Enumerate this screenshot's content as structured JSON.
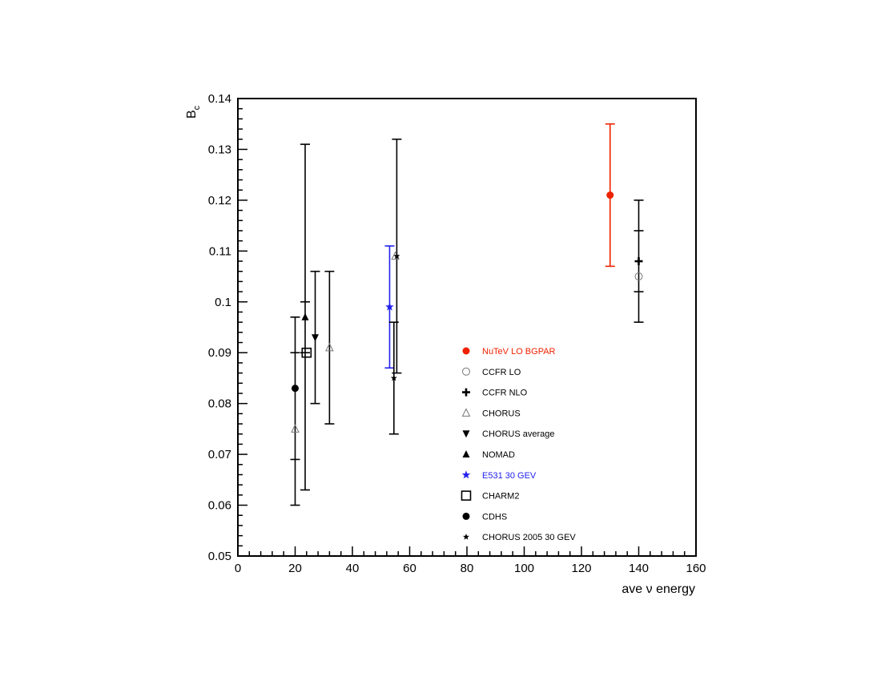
{
  "chart_data": {
    "type": "scatter",
    "title": "",
    "xlabel": "ave ν energy",
    "ylabel": "B",
    "ylabel_sub": "c",
    "xlim": [
      0,
      160
    ],
    "ylim": [
      0.05,
      0.14
    ],
    "x_ticks": [
      0,
      20,
      40,
      60,
      80,
      100,
      120,
      140,
      160
    ],
    "x_tick_labels": [
      "0",
      "20",
      "40",
      "60",
      "80",
      "100",
      "120",
      "140",
      "160"
    ],
    "y_ticks": [
      0.05,
      0.06,
      0.07,
      0.08,
      0.09,
      0.1,
      0.11,
      0.12,
      0.13,
      0.14
    ],
    "y_tick_labels": [
      "0.05",
      "0.06",
      "0.07",
      "0.08",
      "0.09",
      "0.1",
      "0.11",
      "0.12",
      "0.13",
      "0.14"
    ],
    "grid": false,
    "legend_position": "center-right",
    "series": [
      {
        "name": "NuTeV LO BGPAR",
        "marker": "circle-filled",
        "color": "#ee2200",
        "points": [
          {
            "x": 130,
            "y": 0.121,
            "ylow": 0.107,
            "yhigh": 0.135
          }
        ]
      },
      {
        "name": "CCFR LO",
        "marker": "circle-open",
        "color": "#777777",
        "points": [
          {
            "x": 140,
            "y": 0.105
          }
        ]
      },
      {
        "name": "CCFR NLO",
        "marker": "cross",
        "color": "#000000",
        "points": [
          {
            "x": 140,
            "y": 0.108,
            "ylow": 0.096,
            "yhigh": 0.12,
            "ylow_inner": 0.102,
            "yhigh_inner": 0.114
          }
        ]
      },
      {
        "name": "CHORUS",
        "marker": "triangle-open",
        "color": "#777777",
        "points": [
          {
            "x": 20,
            "y": 0.075
          },
          {
            "x": 32,
            "y": 0.091,
            "ylow": 0.076,
            "yhigh": 0.106
          },
          {
            "x": 55,
            "y": 0.109
          }
        ]
      },
      {
        "name": "CHORUS average",
        "marker": "triangle-down-filled",
        "color": "#000000",
        "points": [
          {
            "x": 27,
            "y": 0.093,
            "ylow": 0.08,
            "yhigh": 0.106
          }
        ]
      },
      {
        "name": "NOMAD",
        "marker": "triangle-filled",
        "color": "#000000",
        "points": [
          {
            "x": 23.5,
            "y": 0.097,
            "ylow": 0.063,
            "yhigh": 0.131,
            "ylow_inner": 0.09,
            "yhigh_inner": 0.1
          }
        ]
      },
      {
        "name": "E531 30 GEV",
        "marker": "star",
        "color": "#2222ee",
        "points": [
          {
            "x": 53,
            "y": 0.099,
            "ylow": 0.087,
            "yhigh": 0.111
          }
        ]
      },
      {
        "name": "CHARM2",
        "marker": "square-open",
        "color": "#000000",
        "points": [
          {
            "x": 24,
            "y": 0.09
          }
        ]
      },
      {
        "name": "CDHS",
        "marker": "circle-filled",
        "color": "#000000",
        "points": [
          {
            "x": 20,
            "y": 0.083,
            "ylow": 0.06,
            "yhigh": 0.097,
            "ylow_inner": 0.069,
            "yhigh_inner": 0.09
          }
        ]
      },
      {
        "name": "CHORUS 2005 30 GEV",
        "marker": "star-small",
        "color": "#000000",
        "points": [
          {
            "x": 54.5,
            "y": 0.085,
            "ylow": 0.074,
            "yhigh": 0.096
          },
          {
            "x": 55.5,
            "y": 0.109,
            "ylow": 0.086,
            "yhigh": 0.132
          }
        ]
      }
    ]
  }
}
